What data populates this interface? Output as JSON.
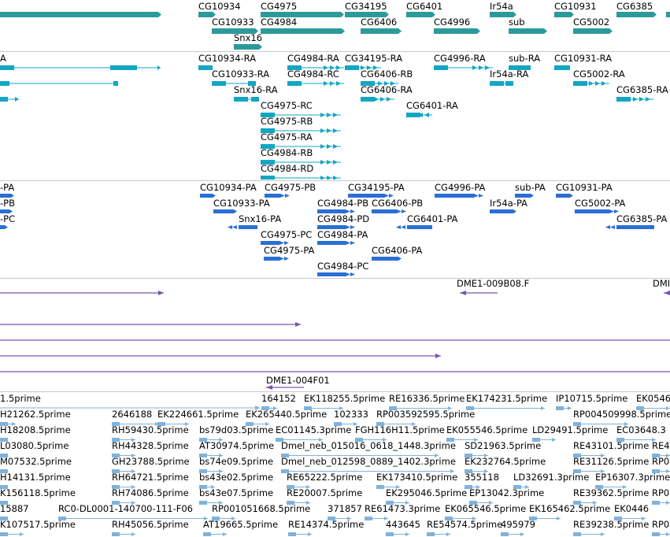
{
  "colors": {
    "gene": "#2d9a9a",
    "mrna": "#12a6c4",
    "protein": "#2a6fd6",
    "clone": "#7a55b4",
    "est": "#7fb2dc",
    "separator": "#c8c8c8"
  },
  "tracks": [
    {
      "id": "gene",
      "features": [
        {
          "label": "",
          "type": "block"
        },
        {
          "label": "CG10934",
          "type": "block"
        },
        {
          "label": "CG4975",
          "type": "block"
        },
        {
          "label": "CG34195",
          "type": "block"
        },
        {
          "label": "CG6401",
          "type": "block"
        },
        {
          "label": "Ir54a",
          "type": "block"
        },
        {
          "label": "CG10931",
          "type": "block"
        },
        {
          "label": "CG6385",
          "type": "block"
        },
        {
          "label": "",
          "type": "block"
        },
        {
          "label": "CG10933",
          "type": "block"
        },
        {
          "label": "CG4984",
          "type": "block"
        },
        {
          "label": "CG6406",
          "type": "block"
        },
        {
          "label": "CG4996",
          "type": "block"
        },
        {
          "label": "sub",
          "type": "block"
        },
        {
          "label": "CG5002",
          "type": "block"
        },
        {
          "label": "Snx16",
          "type": "block"
        }
      ]
    },
    {
      "id": "mrna",
      "features": [
        {
          "label": "A",
          "type": "transcript"
        },
        {
          "label": "CG10934-RA",
          "type": "transcript"
        },
        {
          "label": "CG4984-RA",
          "type": "transcript"
        },
        {
          "label": "CG34195-RA",
          "type": "transcript"
        },
        {
          "label": "CG4996-RA",
          "type": "transcript"
        },
        {
          "label": "sub-RA",
          "type": "transcript"
        },
        {
          "label": "CG10931-RA",
          "type": "transcript"
        },
        {
          "label": "",
          "type": "transcript"
        },
        {
          "label": "CG10933-RA",
          "type": "transcript"
        },
        {
          "label": "CG4984-RC",
          "type": "transcript"
        },
        {
          "label": "CG6406-RB",
          "type": "transcript"
        },
        {
          "label": "Ir54a-RA",
          "type": "transcript"
        },
        {
          "label": "CG5002-RA",
          "type": "transcript"
        },
        {
          "label": "",
          "type": "transcript"
        },
        {
          "label": "Snx16-RA",
          "type": "transcript"
        },
        {
          "label": "CG6406-RA",
          "type": "transcript"
        },
        {
          "label": "CG6385-RA",
          "type": "transcript"
        },
        {
          "label": "CG6401-RA",
          "type": "transcript"
        },
        {
          "label": "CG4975-RC",
          "type": "transcript"
        },
        {
          "label": "CG4975-RB",
          "type": "transcript"
        },
        {
          "label": "CG4975-RA",
          "type": "transcript"
        },
        {
          "label": "CG4984-RB",
          "type": "transcript"
        },
        {
          "label": "CG4984-RD",
          "type": "transcript"
        }
      ]
    },
    {
      "id": "protein",
      "features": [
        {
          "label": "-PA",
          "type": "protein"
        },
        {
          "label": "CG10934-PA",
          "type": "protein"
        },
        {
          "label": "CG4975-PB",
          "type": "protein"
        },
        {
          "label": "CG34195-PA",
          "type": "protein"
        },
        {
          "label": "CG4996-PA",
          "type": "protein"
        },
        {
          "label": "sub-PA",
          "type": "protein"
        },
        {
          "label": "CG10931-PA",
          "type": "protein"
        },
        {
          "label": "-PB",
          "type": "protein"
        },
        {
          "label": "CG10933-PA",
          "type": "protein"
        },
        {
          "label": "CG4984-PB",
          "type": "protein"
        },
        {
          "label": "CG6406-PB",
          "type": "protein"
        },
        {
          "label": "Ir54a-PA",
          "type": "protein"
        },
        {
          "label": "CG5002-PA",
          "type": "protein"
        },
        {
          "label": "-PC",
          "type": "protein"
        },
        {
          "label": "Snx16-PA",
          "type": "protein"
        },
        {
          "label": "CG4984-PD",
          "type": "protein"
        },
        {
          "label": "CG6401-PA",
          "type": "protein"
        },
        {
          "label": "CG6385-PA",
          "type": "protein"
        },
        {
          "label": "CG4975-PC",
          "type": "protein"
        },
        {
          "label": "CG4984-PA",
          "type": "protein"
        },
        {
          "label": "CG4975-PA",
          "type": "protein"
        },
        {
          "label": "CG6406-PA",
          "type": "protein"
        },
        {
          "label": "CG4984-PC",
          "type": "protein"
        }
      ]
    },
    {
      "id": "clone",
      "features": [
        {
          "label": "",
          "type": "clone"
        },
        {
          "label": "DME1-009B08.F",
          "type": "clone"
        },
        {
          "label": "DMI",
          "type": "clone"
        },
        {
          "label": "",
          "type": "clone"
        },
        {
          "label": "",
          "type": "clone"
        },
        {
          "label": "",
          "type": "clone"
        },
        {
          "label": "",
          "type": "clone"
        },
        {
          "label": "DME1-004F01",
          "type": "clone"
        }
      ]
    },
    {
      "id": "est",
      "features": [
        {
          "label": "1.5prime",
          "type": "est"
        },
        {
          "label": "164152",
          "type": "est"
        },
        {
          "label": "EK118255.5prime",
          "type": "est"
        },
        {
          "label": "RE16336.5prime",
          "type": "est"
        },
        {
          "label": "EK174231.5prime",
          "type": "est"
        },
        {
          "label": "IP10715.5prime",
          "type": "est"
        },
        {
          "label": "EK0546",
          "type": "est"
        },
        {
          "label": "H21262.5prime",
          "type": "est"
        },
        {
          "label": "2646188",
          "type": "est"
        },
        {
          "label": "EK224661.5prime",
          "type": "est"
        },
        {
          "label": "EK265440.5prime",
          "type": "est"
        },
        {
          "label": "102333",
          "type": "est"
        },
        {
          "label": "RP003592595.5prime",
          "type": "est"
        },
        {
          "label": "RP004509998.5prime",
          "type": "est"
        },
        {
          "label": "H18208.5prime",
          "type": "est"
        },
        {
          "label": "RH59430.5prime",
          "type": "est"
        },
        {
          "label": "bs79d03.5prime",
          "type": "est"
        },
        {
          "label": "EC01145.3prime",
          "type": "est"
        },
        {
          "label": "FGH116H11.5prime",
          "type": "est"
        },
        {
          "label": "EK055546.5prime",
          "type": "est"
        },
        {
          "label": "LD29491.5prime",
          "type": "est"
        },
        {
          "label": "EC03648.3",
          "type": "est"
        },
        {
          "label": "L03080.5prime",
          "type": "est"
        },
        {
          "label": "RH44328.5prime",
          "type": "est"
        },
        {
          "label": "AT30974.5prime",
          "type": "est"
        },
        {
          "label": "Dmel_neb_015016_0618_1448.3prime",
          "type": "est"
        },
        {
          "label": "SD21963.5prime",
          "type": "est"
        },
        {
          "label": "RE43101.5prime",
          "type": "est"
        },
        {
          "label": "RE4",
          "type": "est"
        },
        {
          "label": "M07532.5prime",
          "type": "est"
        },
        {
          "label": "GH23788.5prime",
          "type": "est"
        },
        {
          "label": "bs74e09.5prime",
          "type": "est"
        },
        {
          "label": "Dmel_neb_012598_0889_1402.3prime",
          "type": "est"
        },
        {
          "label": "EK232764.5prime",
          "type": "est"
        },
        {
          "label": "RE31126.5prime",
          "type": "est"
        },
        {
          "label": "RP0",
          "type": "est"
        },
        {
          "label": "H14131.5prime",
          "type": "est"
        },
        {
          "label": "RH64721.5prime",
          "type": "est"
        },
        {
          "label": "bs43e02.5prime",
          "type": "est"
        },
        {
          "label": "RE65222.5prime",
          "type": "est"
        },
        {
          "label": "EK173410.5prime",
          "type": "est"
        },
        {
          "label": "355118",
          "type": "est"
        },
        {
          "label": "LD32691.3prime",
          "type": "est"
        },
        {
          "label": "EP16307.3prime",
          "type": "est"
        },
        {
          "label": "K156118.5prime",
          "type": "est"
        },
        {
          "label": "RH74086.5prime",
          "type": "est"
        },
        {
          "label": "bs43e07.5prime",
          "type": "est"
        },
        {
          "label": "RE20007.5prime",
          "type": "est"
        },
        {
          "label": "EK295046.5prime",
          "type": "est"
        },
        {
          "label": "EP13042.3prime",
          "type": "est"
        },
        {
          "label": "RE39362.5prime",
          "type": "est"
        },
        {
          "label": "RP0",
          "type": "est"
        },
        {
          "label": "15887",
          "type": "est"
        },
        {
          "label": "RC0-DL0001-140700-111-F06",
          "type": "est"
        },
        {
          "label": "RP001051668.5prime",
          "type": "est"
        },
        {
          "label": "371857",
          "type": "est"
        },
        {
          "label": "RE61473.3prime",
          "type": "est"
        },
        {
          "label": "EK065546.5prime",
          "type": "est"
        },
        {
          "label": "EK165462.5prime",
          "type": "est"
        },
        {
          "label": "EK0446",
          "type": "est"
        },
        {
          "label": "K107517.5prime",
          "type": "est"
        },
        {
          "label": "RH45056.5prime",
          "type": "est"
        },
        {
          "label": "AT19665.5prime",
          "type": "est"
        },
        {
          "label": "RE14374.5prime",
          "type": "est"
        },
        {
          "label": "443645",
          "type": "est"
        },
        {
          "label": "RE54574.5prime",
          "type": "est"
        },
        {
          "label": "495979",
          "type": "est"
        },
        {
          "label": "RE39238.5prime",
          "type": "est"
        },
        {
          "label": "RP0",
          "type": "est"
        }
      ]
    }
  ]
}
